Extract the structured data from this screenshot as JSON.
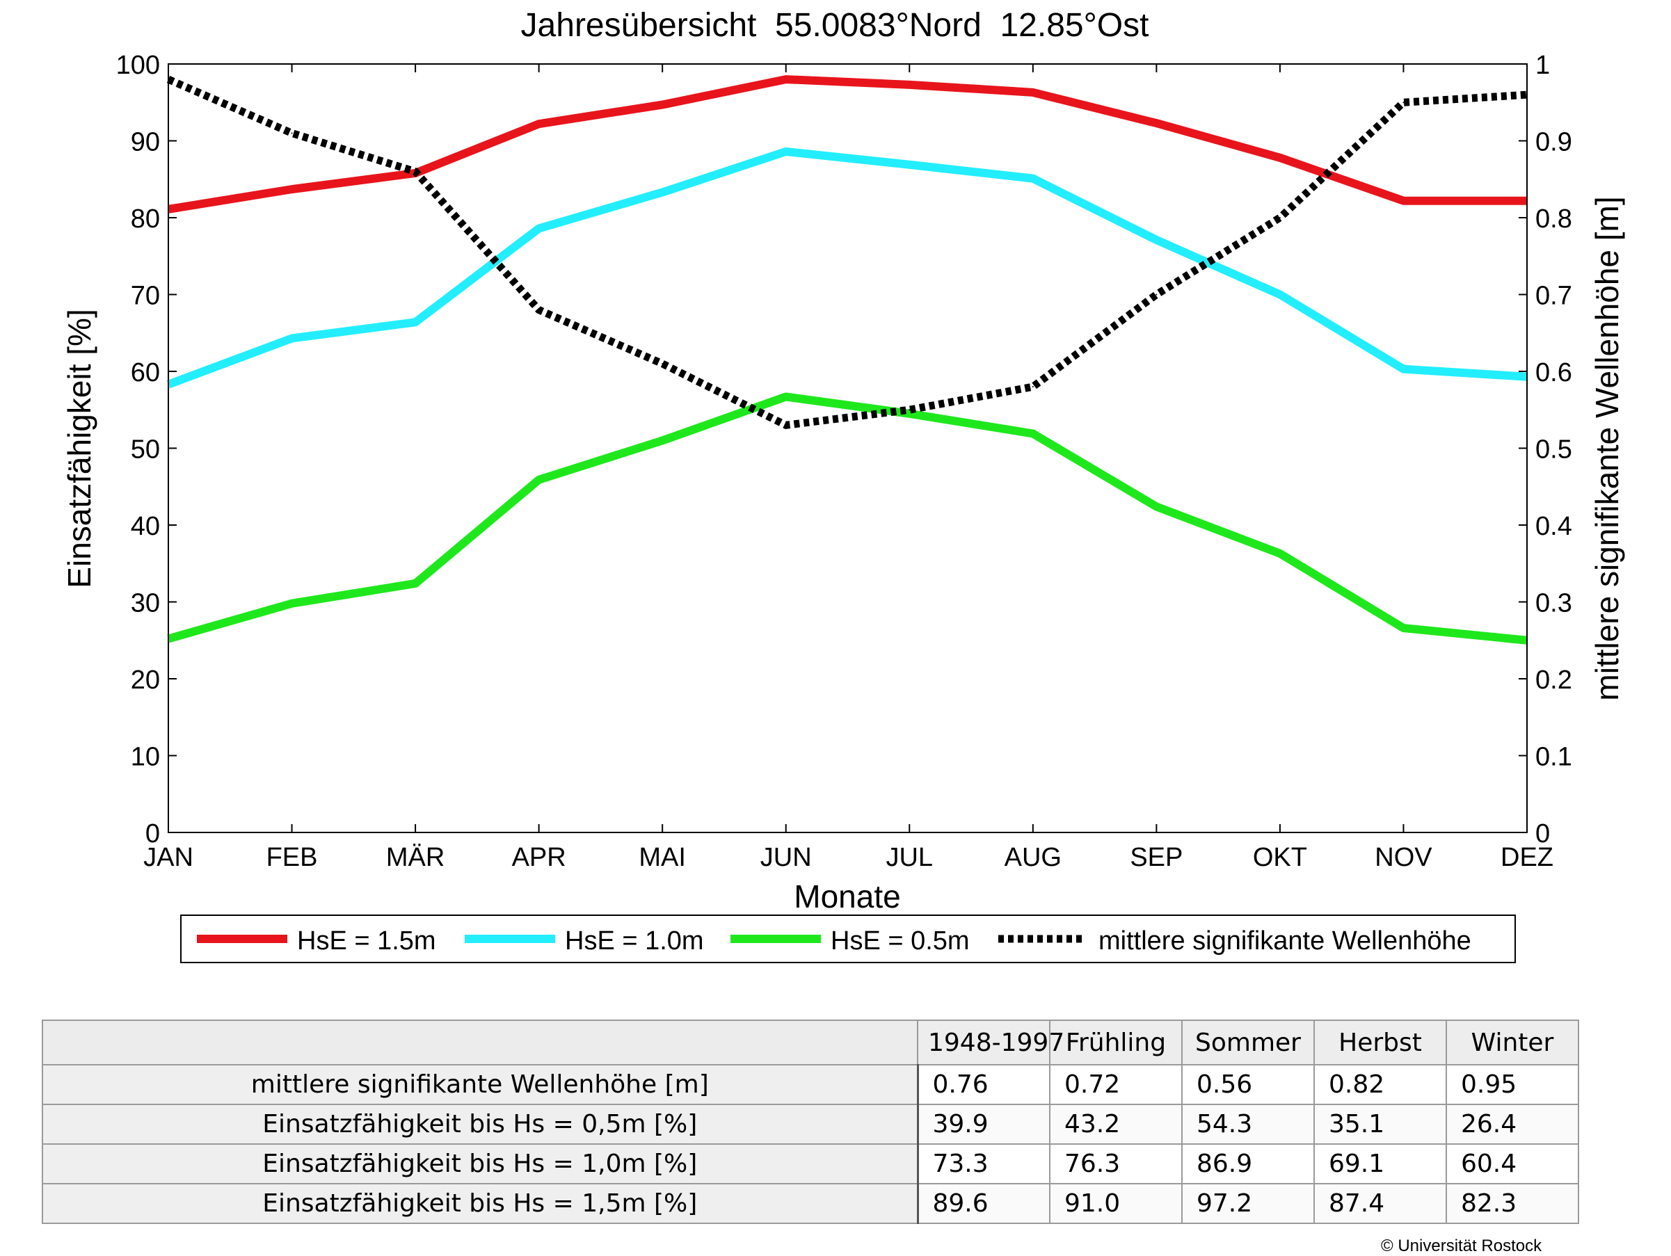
{
  "chart_data": {
    "type": "line",
    "title": "Jahresübersicht  55.0083°Nord  12.85°Ost",
    "xlabel": "Monate",
    "ylabel": "Einsatzfähigkeit [%]",
    "y2label": "mittlere signifikante Wellenhöhe [m]",
    "categories": [
      "JAN",
      "FEB",
      "MÄR",
      "APR",
      "MAI",
      "JUN",
      "JUL",
      "AUG",
      "SEP",
      "OKT",
      "NOV",
      "DEZ"
    ],
    "ylim": [
      0,
      100
    ],
    "yticks": [
      "0",
      "10",
      "20",
      "30",
      "40",
      "50",
      "60",
      "70",
      "80",
      "90",
      "100"
    ],
    "y2lim": [
      0,
      1
    ],
    "y2ticks": [
      "0",
      "0.1",
      "0.2",
      "0.3",
      "0.4",
      "0.5",
      "0.6",
      "0.7",
      "0.8",
      "0.9",
      "1"
    ],
    "grid": false,
    "legend": "bottom",
    "series": [
      {
        "name": "HsE = 1.5m",
        "axis": "left",
        "color": "#e8141c",
        "style": "solid",
        "values": [
          81.1,
          83.7,
          85.8,
          92.2,
          94.7,
          98.0,
          97.3,
          96.3,
          92.3,
          87.8,
          82.2,
          82.2
        ]
      },
      {
        "name": "HsE = 1.0m",
        "axis": "left",
        "color": "#22eeff",
        "style": "solid",
        "values": [
          58.3,
          64.3,
          66.4,
          78.6,
          83.3,
          88.6,
          86.9,
          85.1,
          77.1,
          70.0,
          60.3,
          59.3
        ]
      },
      {
        "name": "HsE = 0.5m",
        "axis": "left",
        "color": "#1ee81c",
        "style": "solid",
        "values": [
          25.2,
          29.8,
          32.4,
          45.9,
          51.0,
          56.7,
          54.5,
          51.9,
          42.4,
          36.3,
          26.6,
          25.0
        ]
      },
      {
        "name": "mittlere signifikante Wellenhöhe",
        "axis": "right",
        "color": "#000000",
        "style": "dotted",
        "values": [
          0.98,
          0.91,
          0.86,
          0.68,
          0.61,
          0.53,
          0.55,
          0.58,
          0.7,
          0.8,
          0.95,
          0.96
        ]
      }
    ]
  },
  "table": {
    "columns": [
      "1948-1997",
      "Frühling",
      "Sommer",
      "Herbst",
      "Winter"
    ],
    "rows": [
      {
        "label": "mittlere signifikante Wellenhöhe [m]",
        "values": [
          "0.76",
          "0.72",
          "0.56",
          "0.82",
          "0.95"
        ]
      },
      {
        "label": "Einsatzfähigkeit bis Hs = 0,5m [%]",
        "values": [
          "39.9",
          "43.2",
          "54.3",
          "35.1",
          "26.4"
        ]
      },
      {
        "label": "Einsatzfähigkeit bis Hs = 1,0m [%]",
        "values": [
          "73.3",
          "76.3",
          "86.9",
          "69.1",
          "60.4"
        ]
      },
      {
        "label": "Einsatzfähigkeit bis Hs = 1,5m [%]",
        "values": [
          "89.6",
          "91.0",
          "97.2",
          "87.4",
          "82.3"
        ]
      }
    ]
  },
  "copyright": "© Universität Rostock"
}
